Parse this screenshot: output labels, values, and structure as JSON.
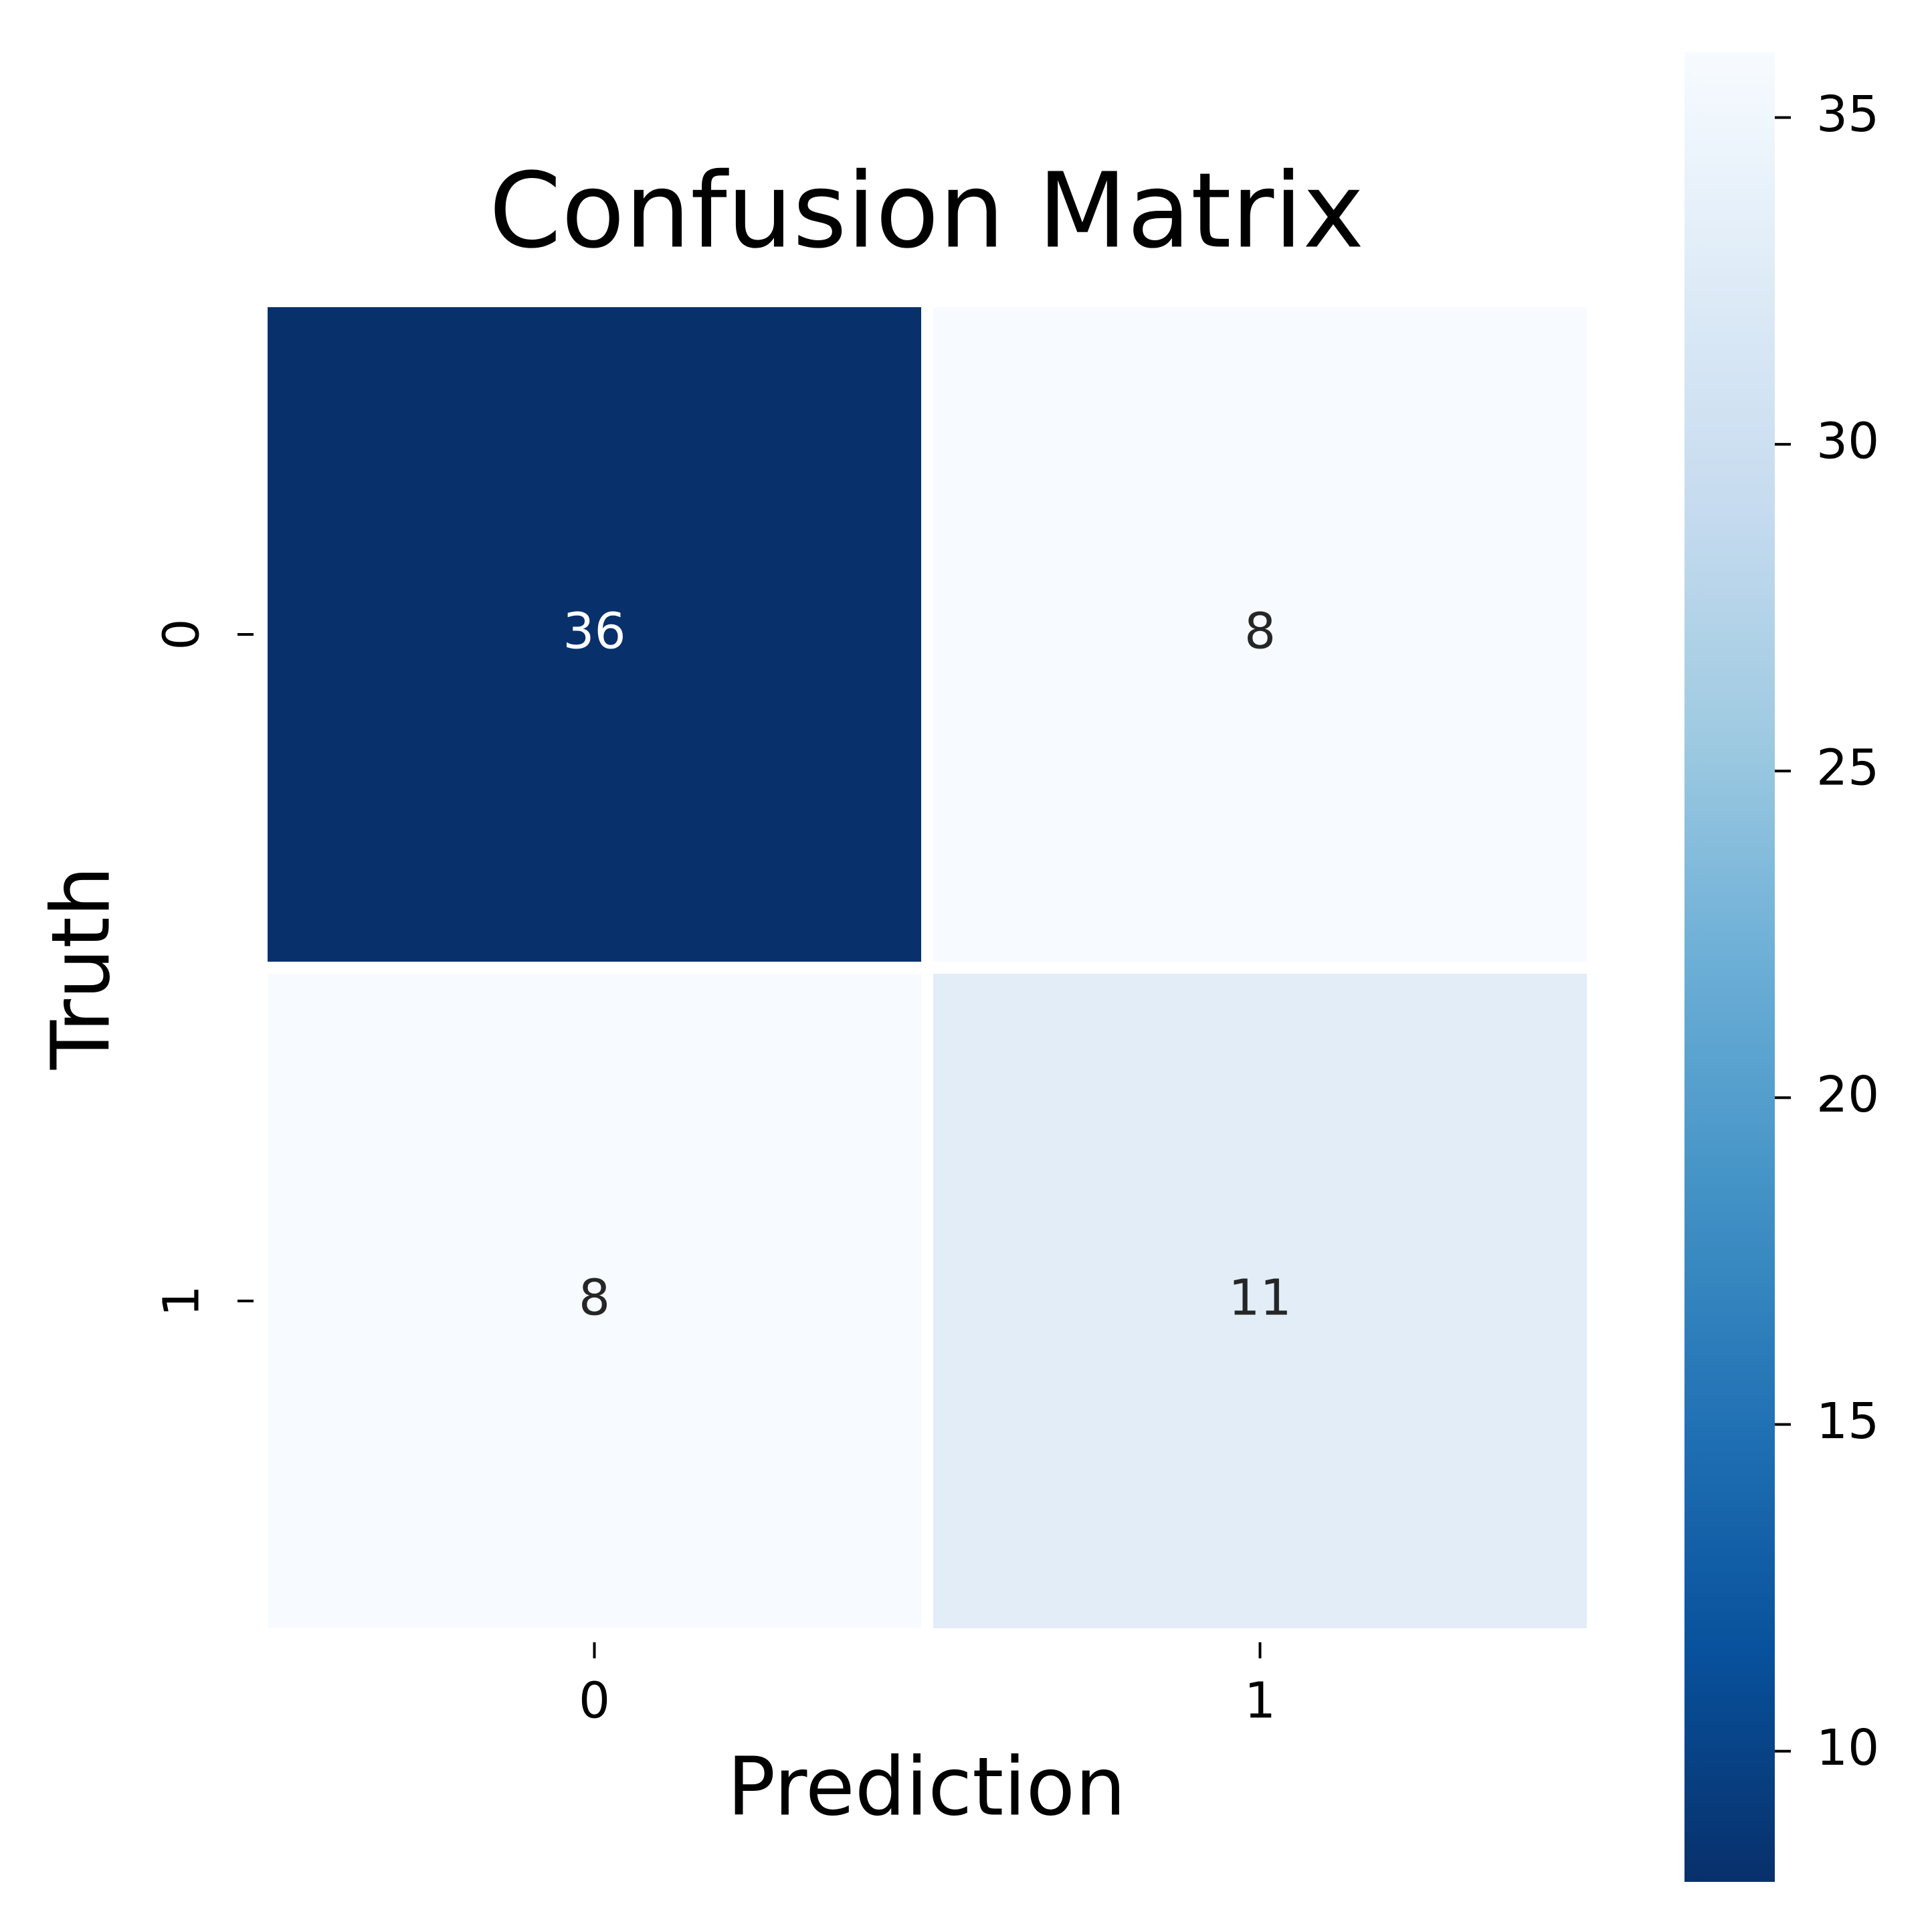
{
  "chart_data": {
    "type": "heatmap",
    "title": "Confusion Matrix",
    "x_label": "Prediction",
    "y_label": "Truth",
    "x_categories": [
      "0",
      "1"
    ],
    "y_categories": [
      "0",
      "1"
    ],
    "values": [
      [
        36,
        8
      ],
      [
        8,
        11
      ]
    ],
    "colormap": "Blues",
    "colorbar_lim": [
      8,
      36
    ],
    "colorbar_ticks": [
      10,
      15,
      20,
      25,
      30,
      35
    ]
  }
}
